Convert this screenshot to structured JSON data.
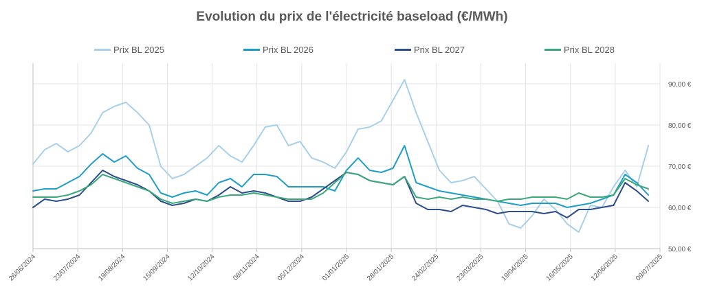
{
  "chart_data": {
    "type": "line",
    "title": "Evolution du prix de l'électricité baseload (€/MWh)",
    "xlabel": "",
    "ylabel": "",
    "ylim": [
      50,
      95
    ],
    "y_ticks": [
      50,
      60,
      70,
      80,
      90
    ],
    "y_tick_labels": [
      "50,00 €",
      "60,00 €",
      "70,00 €",
      "80,00 €",
      "90,00 €"
    ],
    "y_axis_side": "right",
    "x_range": [
      "2024-06-26",
      "2025-07-09"
    ],
    "x_tick_labels": [
      "26/06/2024",
      "23/07/2024",
      "19/08/2024",
      "15/09/2024",
      "12/10/2024",
      "08/11/2024",
      "05/12/2024",
      "01/01/2025",
      "28/01/2025",
      "24/02/2025",
      "23/03/2025",
      "19/04/2025",
      "16/05/2025",
      "12/06/2025",
      "09/07/2025"
    ],
    "grid": true,
    "legend_position": "top",
    "x": [
      "2024-06-26",
      "2024-07-03",
      "2024-07-10",
      "2024-07-17",
      "2024-07-24",
      "2024-07-31",
      "2024-08-07",
      "2024-08-14",
      "2024-08-21",
      "2024-08-28",
      "2024-09-04",
      "2024-09-11",
      "2024-09-18",
      "2024-09-25",
      "2024-10-02",
      "2024-10-09",
      "2024-10-16",
      "2024-10-23",
      "2024-10-30",
      "2024-11-06",
      "2024-11-13",
      "2024-11-20",
      "2024-11-27",
      "2024-12-04",
      "2024-12-11",
      "2024-12-18",
      "2024-12-25",
      "2025-01-01",
      "2025-01-08",
      "2025-01-15",
      "2025-01-22",
      "2025-01-29",
      "2025-02-05",
      "2025-02-12",
      "2025-02-19",
      "2025-02-26",
      "2025-03-05",
      "2025-03-12",
      "2025-03-19",
      "2025-03-26",
      "2025-04-02",
      "2025-04-09",
      "2025-04-16",
      "2025-04-23",
      "2025-04-30",
      "2025-05-07",
      "2025-05-14",
      "2025-05-21",
      "2025-05-28",
      "2025-06-04",
      "2025-06-11",
      "2025-06-18",
      "2025-06-25",
      "2025-07-02"
    ],
    "series": [
      {
        "name": "Prix BL 2025",
        "color": "#a9d0ea",
        "values": [
          70.5,
          74,
          75.5,
          73.5,
          75,
          78,
          83,
          84.5,
          85.5,
          83,
          80,
          70,
          67,
          68,
          70,
          72,
          75,
          72.5,
          71,
          75,
          79.5,
          80,
          75,
          76,
          72,
          71,
          69.5,
          73.5,
          79,
          79.5,
          81,
          86,
          91,
          83,
          76,
          69,
          66,
          66.5,
          67.5,
          64.5,
          61.5,
          56,
          55,
          58,
          62,
          59.5,
          56,
          54,
          60.5,
          60,
          65,
          69,
          65,
          75
        ]
      },
      {
        "name": "Prix BL 2026",
        "color": "#1f9dc9",
        "values": [
          64,
          64.5,
          64.5,
          66,
          67.5,
          70.5,
          73,
          71,
          72.5,
          69.5,
          68,
          63.5,
          62.5,
          63.5,
          64,
          63,
          66,
          67,
          65,
          68,
          68,
          67.5,
          65,
          65,
          65,
          65,
          64,
          69,
          72,
          69,
          68.5,
          69.5,
          75,
          66,
          65,
          64,
          63.5,
          63,
          62.5,
          62,
          61.5,
          61,
          60.5,
          61,
          61,
          61,
          60,
          60.5,
          61,
          62,
          63,
          68,
          66,
          63
        ]
      },
      {
        "name": "Prix BL 2027",
        "color": "#2d4e8c",
        "values": [
          60,
          62,
          61.5,
          62,
          63,
          66,
          69,
          67.5,
          66.5,
          65.5,
          64,
          61.5,
          60.5,
          61,
          62,
          61.5,
          63,
          65,
          63.5,
          64,
          63.5,
          62.5,
          61.5,
          61.5,
          62.5,
          64.5,
          66.5,
          68.5,
          68,
          66.5,
          66,
          65.5,
          67.5,
          61,
          59.5,
          59.5,
          59,
          60.5,
          60,
          59.5,
          58.5,
          59,
          59,
          59,
          58.5,
          59,
          57.5,
          59.5,
          59.5,
          60,
          60.5,
          66,
          64,
          61.5
        ]
      },
      {
        "name": "Prix BL 2028",
        "color": "#3aa87a",
        "values": [
          62.5,
          62.5,
          62.5,
          63,
          64,
          65.5,
          68,
          67,
          66,
          65,
          64,
          62,
          61,
          61.5,
          62,
          61.5,
          62.5,
          63,
          63,
          63.5,
          63,
          62.5,
          62,
          62,
          62,
          63.5,
          66,
          68.5,
          68,
          66.5,
          66,
          65.5,
          67.5,
          62.5,
          62,
          62.5,
          62,
          62.5,
          62,
          62,
          61.5,
          62,
          62,
          62.5,
          62.5,
          62.5,
          62,
          63.5,
          62.5,
          62.5,
          63,
          67,
          65.5,
          64.5
        ]
      }
    ]
  }
}
